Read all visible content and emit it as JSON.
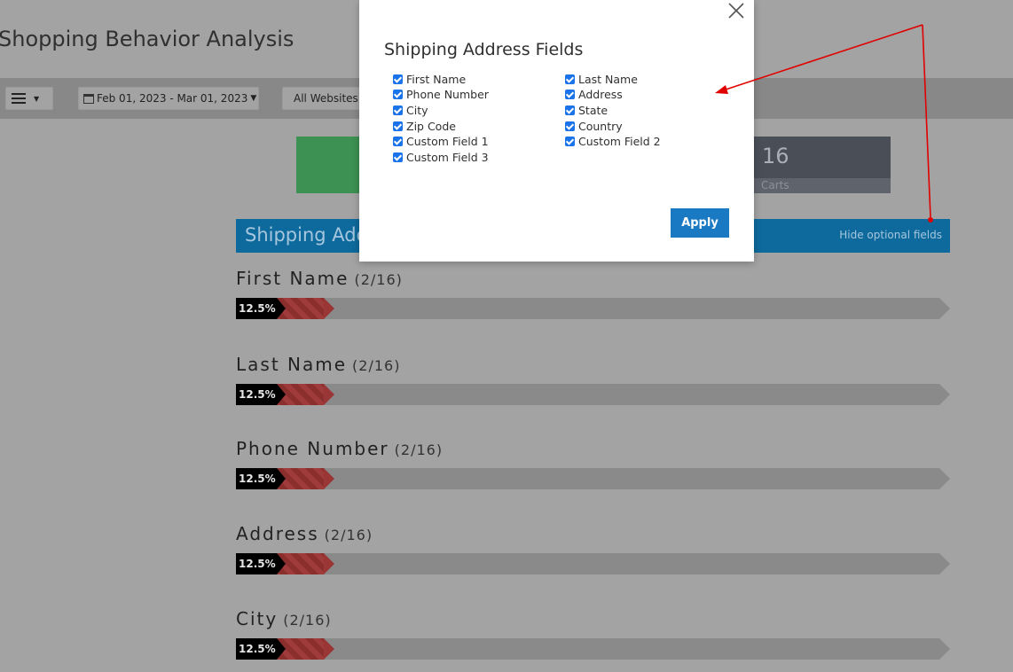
{
  "page": {
    "title": "Shopping Behavior Analysis"
  },
  "toolbar": {
    "date_range": "Feb 01, 2023 - Mar 01, 2023",
    "website": "All Websites"
  },
  "stats": {
    "carts_count": "16",
    "carts_label": "Carts"
  },
  "section": {
    "title": "Shipping Address Fields",
    "hide_link": "Hide optional fields"
  },
  "fields": [
    {
      "name": "First Name",
      "count": "(2/16)",
      "percent_label": "12.5%",
      "percent": 12.5
    },
    {
      "name": "Last Name",
      "count": "(2/16)",
      "percent_label": "12.5%",
      "percent": 12.5
    },
    {
      "name": "Phone Number",
      "count": "(2/16)",
      "percent_label": "12.5%",
      "percent": 12.5
    },
    {
      "name": "Address",
      "count": "(2/16)",
      "percent_label": "12.5%",
      "percent": 12.5
    },
    {
      "name": "City",
      "count": "(2/16)",
      "percent_label": "12.5%",
      "percent": 12.5
    }
  ],
  "modal": {
    "title": "Shipping Address Fields",
    "options_left": [
      "First Name",
      "Phone Number",
      "City",
      "Zip Code",
      "Custom Field 1",
      "Custom Field 3"
    ],
    "options_right": [
      "Last Name",
      "Address",
      "State",
      "Country",
      "Custom Field 2"
    ],
    "apply_label": "Apply"
  },
  "colors": {
    "overlay": "#a3a3a3",
    "section_bar": "#0e6a9c",
    "apply_button": "#1979c3",
    "annotation_arrow": "#e00000"
  }
}
